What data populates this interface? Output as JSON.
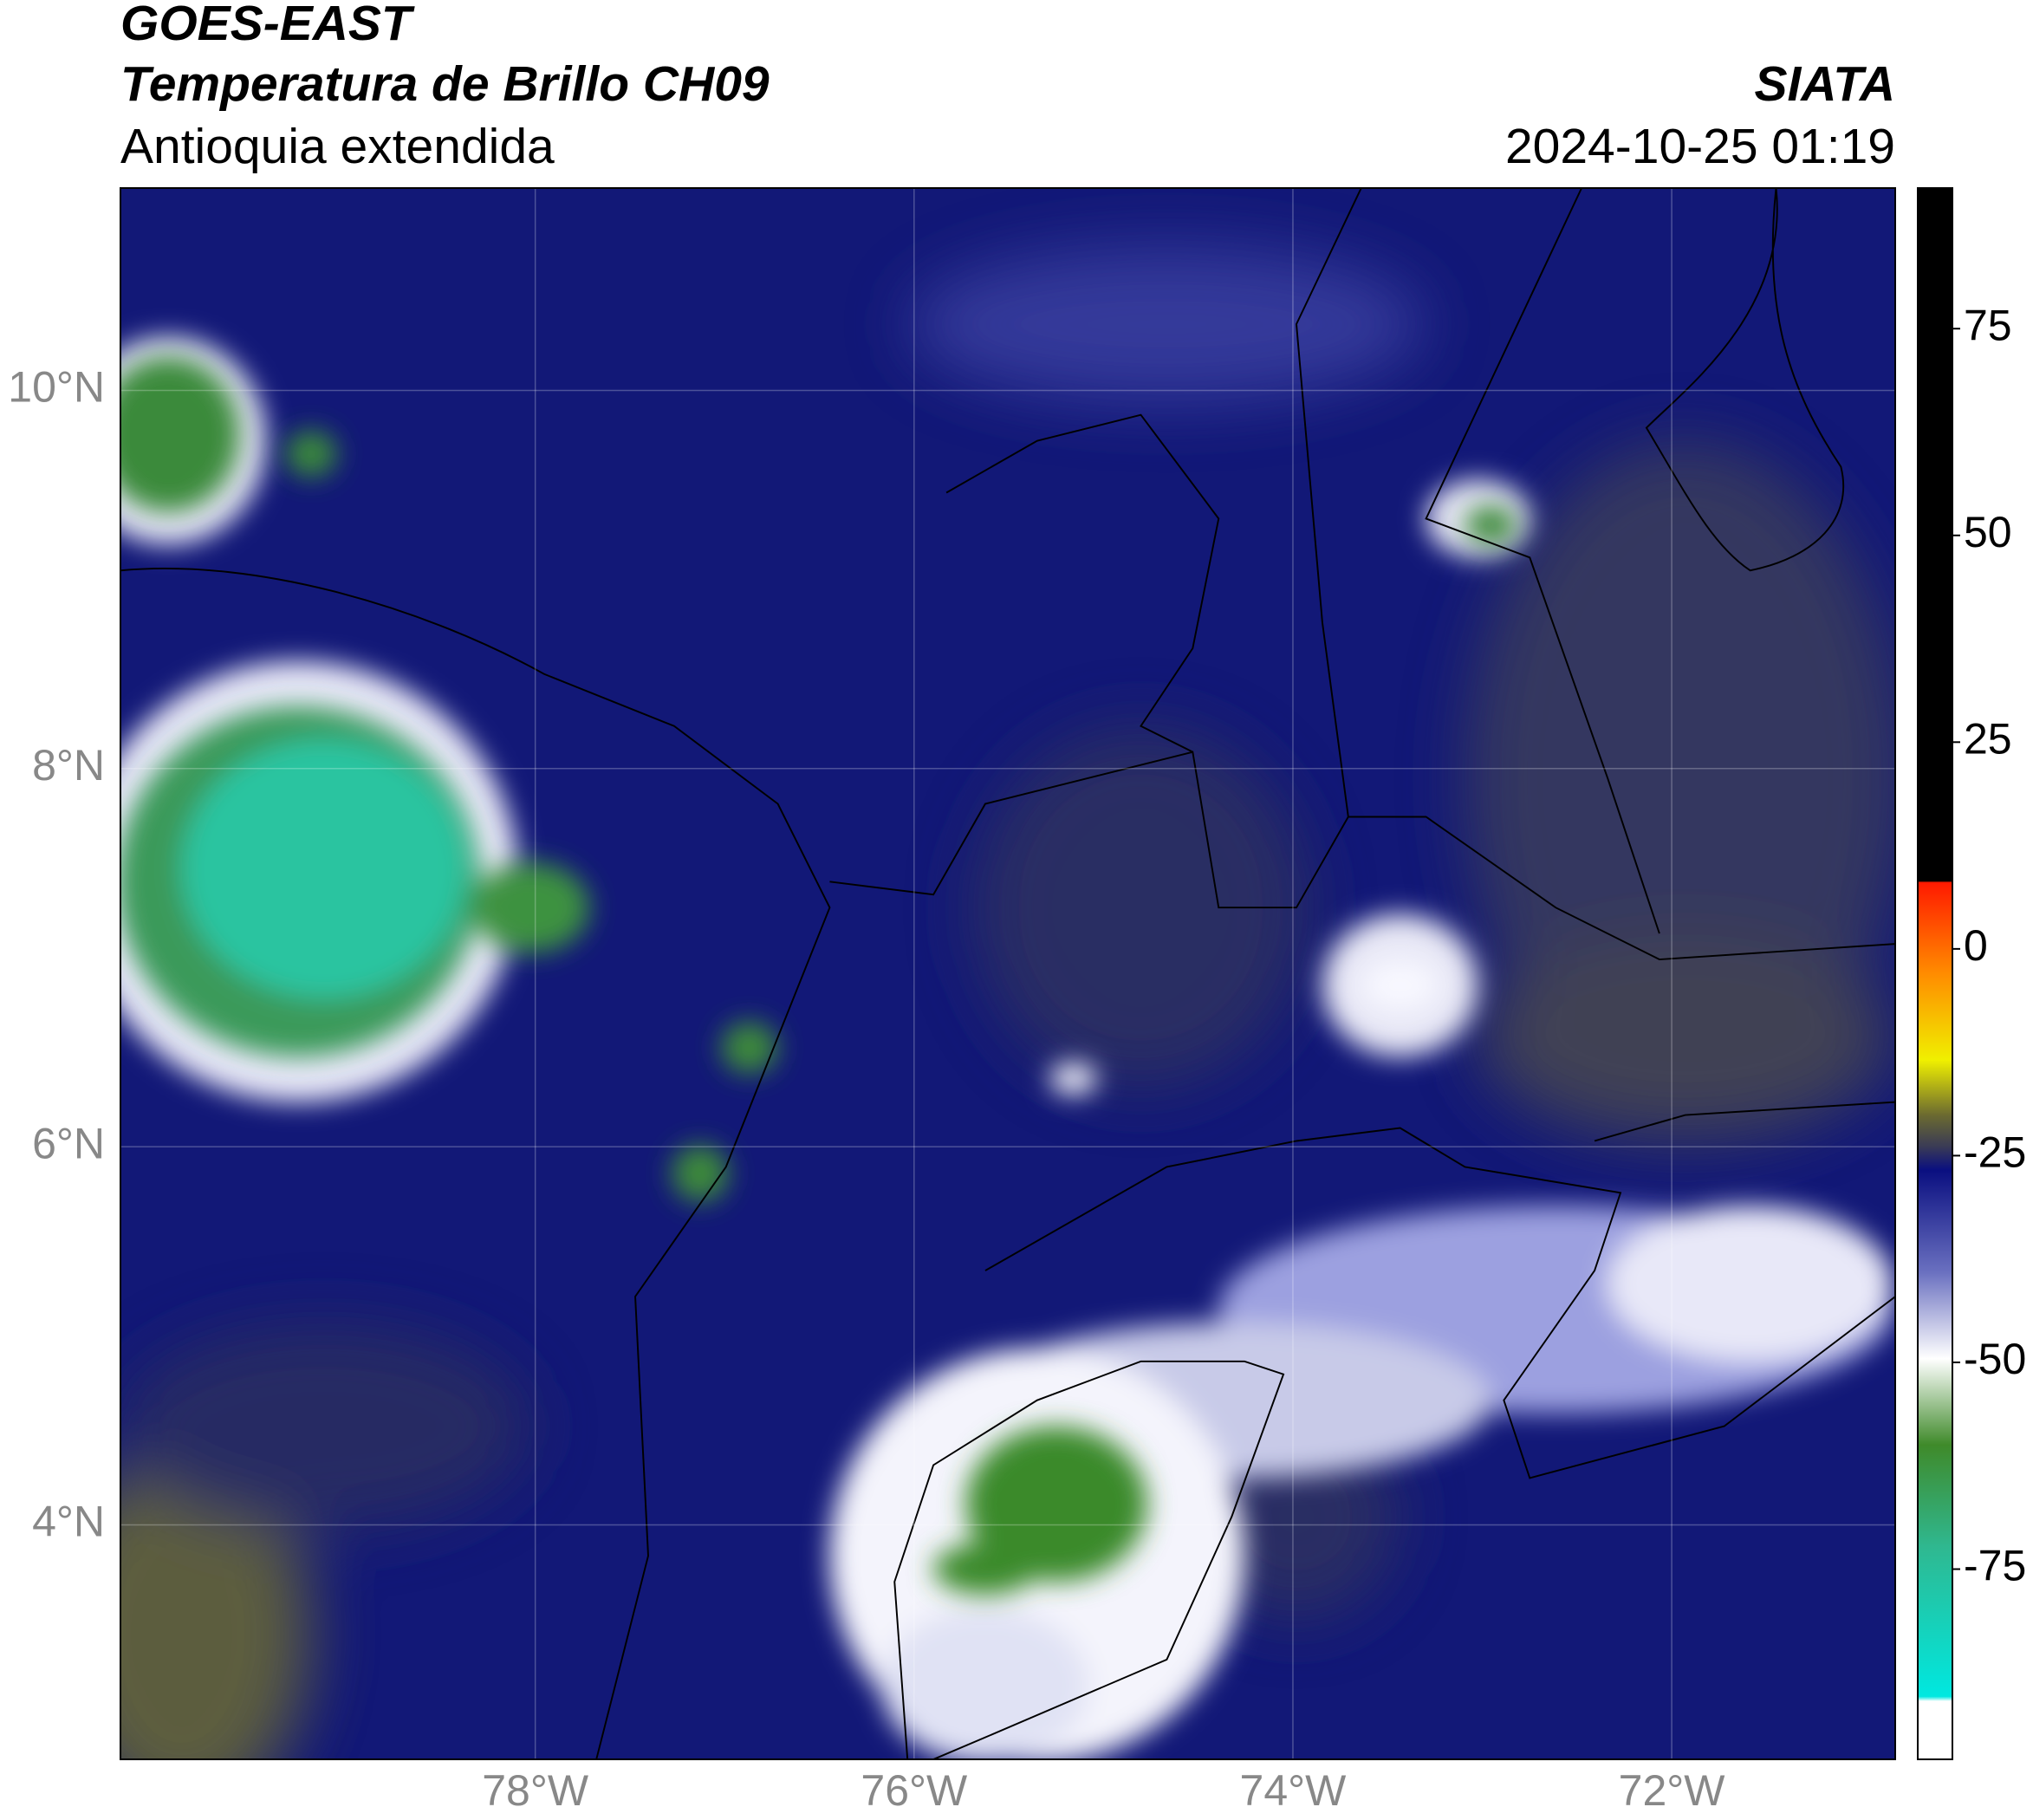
{
  "header": {
    "title": "GOES-EAST",
    "subtitle": "Temperatura de Brillo CH09",
    "region": "Antioquia extendida",
    "source": "SIATA",
    "timestamp": "2024-10-25 01:19"
  },
  "map": {
    "lon_range": [
      -80.19,
      -70.82
    ],
    "lat_range": [
      2.76,
      11.07
    ],
    "lon_ticks": [
      {
        "value": -78,
        "label": "78°W"
      },
      {
        "value": -76,
        "label": "76°W"
      },
      {
        "value": -74,
        "label": "74°W"
      },
      {
        "value": -72,
        "label": "72°W"
      }
    ],
    "lat_ticks": [
      {
        "value": 10,
        "label": "10°N"
      },
      {
        "value": 8,
        "label": "8°N"
      },
      {
        "value": 6,
        "label": "6°N"
      },
      {
        "value": 4,
        "label": "4°N"
      }
    ]
  },
  "colorbar": {
    "lim": [
      -98,
      92
    ],
    "ticks": [
      75,
      50,
      25,
      0,
      -25,
      -50,
      -75
    ]
  }
}
